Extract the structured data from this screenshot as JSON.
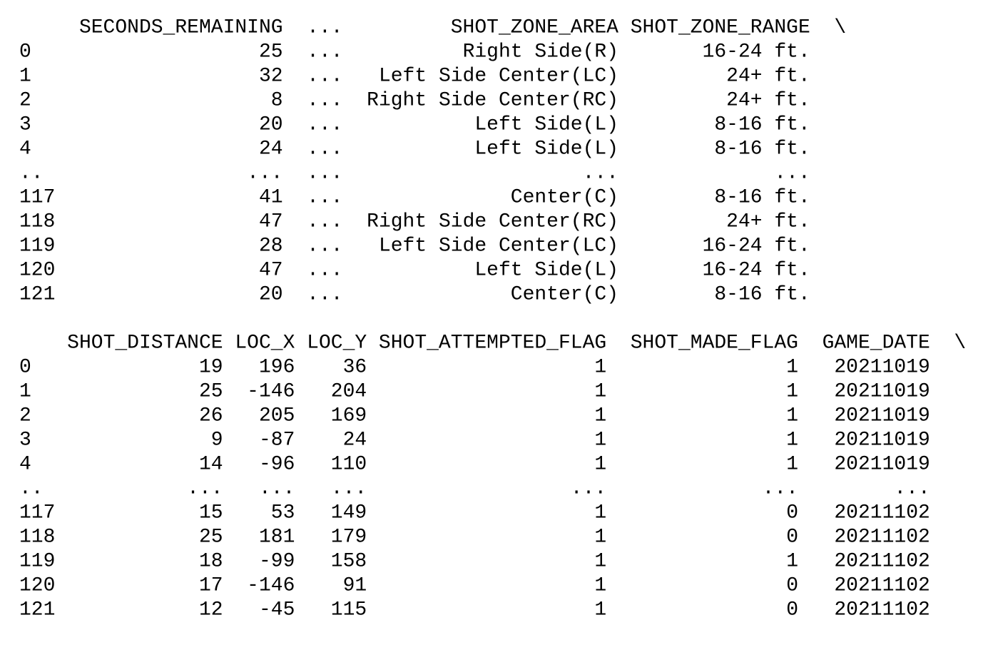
{
  "blocks": [
    {
      "columns": [
        "SECONDS_REMAINING",
        "...",
        "SHOT_ZONE_AREA",
        "SHOT_ZONE_RANGE"
      ],
      "continuation": "\\",
      "rows": [
        {
          "index": 0,
          "cells": [
            25,
            "...",
            "Right Side(R)",
            "16-24 ft."
          ]
        },
        {
          "index": 1,
          "cells": [
            32,
            "...",
            "Left Side Center(LC)",
            "24+ ft."
          ]
        },
        {
          "index": 2,
          "cells": [
            8,
            "...",
            "Right Side Center(RC)",
            "24+ ft."
          ]
        },
        {
          "index": 3,
          "cells": [
            20,
            "...",
            "Left Side(L)",
            "8-16 ft."
          ]
        },
        {
          "index": 4,
          "cells": [
            24,
            "...",
            "Left Side(L)",
            "8-16 ft."
          ]
        },
        {
          "index": "..",
          "cells": [
            "...",
            "...",
            "...",
            "..."
          ]
        },
        {
          "index": 117,
          "cells": [
            41,
            "...",
            "Center(C)",
            "8-16 ft."
          ]
        },
        {
          "index": 118,
          "cells": [
            47,
            "...",
            "Right Side Center(RC)",
            "24+ ft."
          ]
        },
        {
          "index": 119,
          "cells": [
            28,
            "...",
            "Left Side Center(LC)",
            "16-24 ft."
          ]
        },
        {
          "index": 120,
          "cells": [
            47,
            "...",
            "Left Side(L)",
            "16-24 ft."
          ]
        },
        {
          "index": 121,
          "cells": [
            20,
            "...",
            "Center(C)",
            "8-16 ft."
          ]
        }
      ]
    },
    {
      "columns": [
        "SHOT_DISTANCE",
        "LOC_X",
        "LOC_Y",
        "SHOT_ATTEMPTED_FLAG",
        "SHOT_MADE_FLAG",
        "GAME_DATE"
      ],
      "continuation": "\\",
      "rows": [
        {
          "index": 0,
          "cells": [
            19,
            196,
            36,
            1,
            1,
            20211019
          ]
        },
        {
          "index": 1,
          "cells": [
            25,
            -146,
            204,
            1,
            1,
            20211019
          ]
        },
        {
          "index": 2,
          "cells": [
            26,
            205,
            169,
            1,
            1,
            20211019
          ]
        },
        {
          "index": 3,
          "cells": [
            9,
            -87,
            24,
            1,
            1,
            20211019
          ]
        },
        {
          "index": 4,
          "cells": [
            14,
            -96,
            110,
            1,
            1,
            20211019
          ]
        },
        {
          "index": "..",
          "cells": [
            "...",
            "...",
            "...",
            "...",
            "...",
            "..."
          ]
        },
        {
          "index": 117,
          "cells": [
            15,
            53,
            149,
            1,
            0,
            20211102
          ]
        },
        {
          "index": 118,
          "cells": [
            25,
            181,
            179,
            1,
            0,
            20211102
          ]
        },
        {
          "index": 119,
          "cells": [
            18,
            -99,
            158,
            1,
            1,
            20211102
          ]
        },
        {
          "index": 120,
          "cells": [
            17,
            -146,
            91,
            1,
            0,
            20211102
          ]
        },
        {
          "index": 121,
          "cells": [
            12,
            -45,
            115,
            1,
            0,
            20211102
          ]
        }
      ]
    }
  ]
}
